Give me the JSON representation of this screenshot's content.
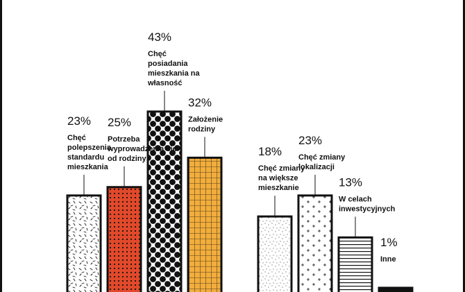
{
  "chart_data": {
    "type": "bar",
    "categories": [
      "Chęć polepszenia standardu mieszkania",
      "Potrzeba wyprowadzenia się od rodziny",
      "Chęć posiadania mieszkania na własność",
      "Założenie rodziny",
      "Chęć zmiany na większe mieszkanie",
      "Chęć zmiany lokalizacji",
      "W celach inwestycyjnych",
      "Inne"
    ],
    "values": [
      23,
      25,
      43,
      32,
      18,
      23,
      13,
      1
    ],
    "value_labels": [
      "23%",
      "25%",
      "43%",
      "32%",
      "18%",
      "23%",
      "13%",
      "1%"
    ],
    "label_lines": [
      [
        "Chęć",
        "polepszenia",
        "standardu",
        "mieszkania"
      ],
      [
        "Potrzeba",
        "wyprowadzenia się",
        "od rodziny"
      ],
      [
        "Chęć",
        "posiadania",
        "mieszkania na",
        "własność"
      ],
      [
        "Założenie",
        "rodziny"
      ],
      [
        "Chęć zmiany",
        "na większe",
        "mieszkanie"
      ],
      [
        "Chęć zmiany",
        "lokalizacji"
      ],
      [
        "W celach",
        "inwestycyjnych"
      ],
      [
        "Inne"
      ]
    ],
    "groups": [
      [
        0,
        1,
        2,
        3
      ],
      [
        4,
        5,
        6,
        7
      ]
    ],
    "unit": "%",
    "ylim": [
      0,
      45
    ],
    "grid": false,
    "legend": "none",
    "title": "",
    "xlabel": "",
    "ylabel": "",
    "patterns": [
      "dashes",
      "dots-on-red",
      "large-dots-on-black",
      "grid-on-orange",
      "stipple",
      "crosses",
      "horizontal-lines",
      "solid-black"
    ],
    "colors": {
      "ink": "#111111",
      "paper": "#ffffff",
      "red": "#e2492a",
      "orange": "#f2ad3c"
    }
  }
}
